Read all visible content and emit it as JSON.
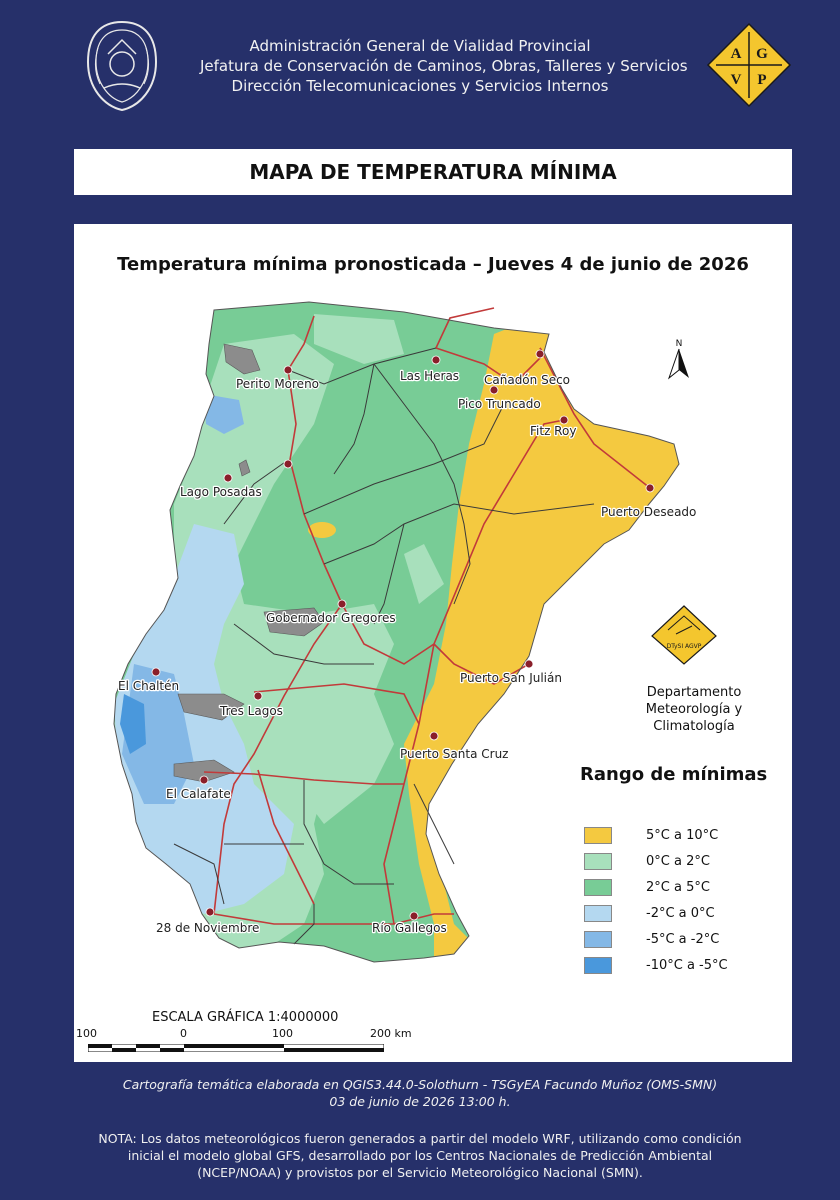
{
  "header": {
    "lines": [
      "Administración General de Vialidad Provincial",
      "Jefatura de Conservación de Caminos, Obras, Talleres y Servicios",
      "Dirección Telecomunicaciones y Servicios Internos"
    ],
    "logo_letters": [
      "A",
      "G",
      "V",
      "P"
    ]
  },
  "title": "MAPA DE TEMPERATURA MÍNIMA",
  "map": {
    "subtitle": "Temperatura mínima pronosticada – Jueves 4 de junio de 2026",
    "north_label": "N",
    "places": [
      "Perito Moreno",
      "Las Heras",
      "Cañadón Seco",
      "Pico Truncado",
      "Fitz Roy",
      "Lago Posadas",
      "Puerto Deseado",
      "Gobernador Gregores",
      "Puerto San Julián",
      "El Chaltén",
      "Tres Lagos",
      "Puerto Santa Cruz",
      "El Calafate",
      "28 de Noviembre",
      "Río Gallegos"
    ]
  },
  "department": {
    "logo_text": "DTySI AGVP",
    "name_lines": [
      "Departamento",
      "Meteorología y Climatología"
    ]
  },
  "legend": {
    "title": "Rango  de mínimas",
    "items": [
      {
        "label": "5°C a 10°C",
        "color": "#f4c940"
      },
      {
        "label": "0°C a 2°C",
        "color": "#a8e0bc"
      },
      {
        "label": "2°C a 5°C",
        "color": "#78cc96"
      },
      {
        "label": "-2°C a 0°C",
        "color": "#b4d8f0"
      },
      {
        "label": "-5°C a -2°C",
        "color": "#84b8e6"
      },
      {
        "label": "-10°C a -5°C",
        "color": "#4a98dc"
      }
    ]
  },
  "scale": {
    "title": "ESCALA GRÁFICA 1:4000000",
    "ticks": [
      "100",
      "0",
      "100",
      "200 km"
    ]
  },
  "credit_lines": [
    "Cartografía temática elaborada en QGIS3.44.0-Solothurn - TSGyEA Facundo Muñoz (OMS-SMN)",
    "03 de junio de 2026 13:00 h."
  ],
  "note": "NOTA: Los datos meteorológicos fueron generados a partir del modelo WRF, utilizando como condición inicial el modelo global GFS, desarrollado por los Centros Nacionales de Predicción Ambiental (NCEP/NOAA) y provistos por el Servicio Meteorológico Nacional (SMN)."
}
